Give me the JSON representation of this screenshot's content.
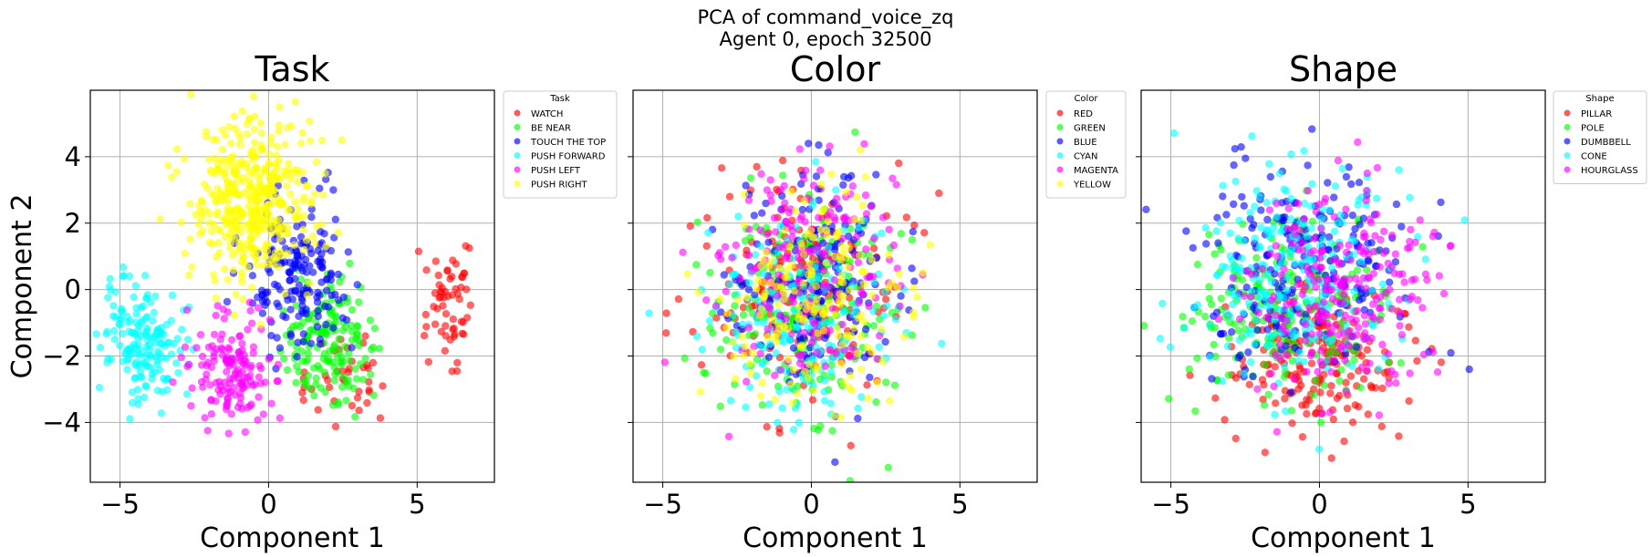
{
  "figure": {
    "suptitle_line1": "PCA of command_voice_zq",
    "suptitle_line2": "Agent 0, epoch 32500"
  },
  "chart_data": [
    {
      "type": "scatter",
      "title": "Task",
      "xlabel": "Component 1",
      "ylabel": "Component 2",
      "xlim": [
        -6.0,
        7.6
      ],
      "ylim": [
        -5.8,
        6.0
      ],
      "xticks": [
        -5,
        0,
        5
      ],
      "yticks": [
        -4,
        -2,
        0,
        2,
        4
      ],
      "grid": true,
      "legend_title": "Task",
      "legend_position": "outside-right-top",
      "series": [
        {
          "name": "WATCH",
          "color": "#ff0000",
          "clusters": [
            [
              6.0,
              -0.5,
              0.5,
              1.0,
              60
            ],
            [
              2.5,
              -2.6,
              0.9,
              0.8,
              40
            ]
          ]
        },
        {
          "name": "BE NEAR",
          "color": "#00ff00",
          "clusters": [
            [
              2.0,
              -1.6,
              0.9,
              1.0,
              160
            ]
          ]
        },
        {
          "name": "TOUCH THE TOP",
          "color": "#0000ff",
          "clusters": [
            [
              1.0,
              0.5,
              1.0,
              1.3,
              180
            ]
          ]
        },
        {
          "name": "PUSH FORWARD",
          "color": "#00ffff",
          "clusters": [
            [
              -4.2,
              -1.5,
              0.8,
              1.0,
              170
            ]
          ]
        },
        {
          "name": "PUSH LEFT",
          "color": "#ff00ff",
          "clusters": [
            [
              -1.3,
              -2.4,
              0.9,
              0.9,
              150
            ]
          ]
        },
        {
          "name": "PUSH RIGHT",
          "color": "#ffff00",
          "clusters": [
            [
              -0.6,
              2.6,
              1.2,
              1.5,
              420
            ]
          ]
        }
      ]
    },
    {
      "type": "scatter",
      "title": "Color",
      "xlabel": "Component 1",
      "ylabel": "",
      "xlim": [
        -6.0,
        7.6
      ],
      "ylim": [
        -5.8,
        6.0
      ],
      "xticks": [
        -5,
        0,
        5
      ],
      "yticks": [
        -4,
        -2,
        0,
        2,
        4
      ],
      "grid": true,
      "legend_title": "Color",
      "legend_position": "outside-right-top",
      "series": [
        {
          "name": "RED",
          "color": "#ff0000",
          "clusters": [
            [
              -0.2,
              0.0,
              1.8,
              2.1,
              190
            ]
          ]
        },
        {
          "name": "GREEN",
          "color": "#00ff00",
          "clusters": [
            [
              -0.2,
              -0.6,
              1.8,
              2.0,
              190
            ]
          ]
        },
        {
          "name": "BLUE",
          "color": "#0000ff",
          "clusters": [
            [
              0.3,
              0.3,
              1.7,
              2.1,
              190
            ]
          ]
        },
        {
          "name": "CYAN",
          "color": "#00ffff",
          "clusters": [
            [
              -0.4,
              -0.8,
              1.9,
              1.9,
              190
            ]
          ]
        },
        {
          "name": "MAGENTA",
          "color": "#ff00ff",
          "clusters": [
            [
              -0.2,
              0.4,
              1.8,
              2.0,
              190
            ]
          ]
        },
        {
          "name": "YELLOW",
          "color": "#ffff00",
          "clusters": [
            [
              0.0,
              -0.4,
              1.8,
              2.0,
              190
            ]
          ]
        }
      ]
    },
    {
      "type": "scatter",
      "title": "Shape",
      "xlabel": "Component 1",
      "ylabel": "",
      "xlim": [
        -6.0,
        7.6
      ],
      "ylim": [
        -5.8,
        6.0
      ],
      "xticks": [
        -5,
        0,
        5
      ],
      "yticks": [
        -4,
        -2,
        0,
        2,
        4
      ],
      "grid": true,
      "legend_title": "Shape",
      "legend_position": "outside-right-top",
      "series": [
        {
          "name": "PILLAR",
          "color": "#ff0000",
          "clusters": [
            [
              0.0,
              -2.2,
              1.8,
              1.2,
              200
            ]
          ]
        },
        {
          "name": "POLE",
          "color": "#00ff00",
          "clusters": [
            [
              -1.2,
              -0.5,
              2.0,
              1.7,
              220
            ]
          ]
        },
        {
          "name": "DUMBBELL",
          "color": "#0000ff",
          "clusters": [
            [
              -0.6,
              0.8,
              2.1,
              1.8,
              220
            ]
          ]
        },
        {
          "name": "CONE",
          "color": "#00ffff",
          "clusters": [
            [
              -0.8,
              0.6,
              2.2,
              2.0,
              240
            ]
          ]
        },
        {
          "name": "HOURGLASS",
          "color": "#ff00ff",
          "clusters": [
            [
              0.8,
              0.0,
              1.9,
              1.9,
              240
            ]
          ]
        }
      ]
    }
  ]
}
